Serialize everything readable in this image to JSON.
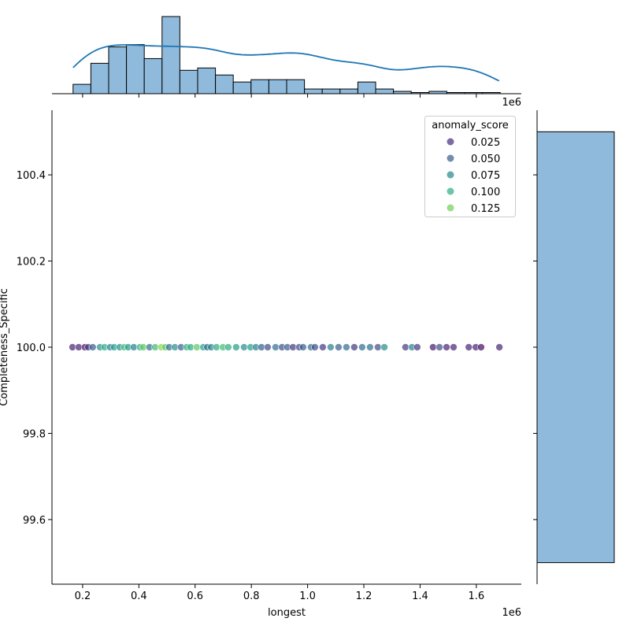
{
  "chart_data": {
    "type": "scatter",
    "kind": "jointplot",
    "xlabel": "longest",
    "ylabel": "Completeness_Specific",
    "x_offset_label": "1e6",
    "top_offset_label": "1e6",
    "xlim": [
      0.091,
      1.76
    ],
    "ylim": [
      99.45,
      100.55
    ],
    "xticks": [
      0.2,
      0.4,
      0.6,
      0.8,
      1.0,
      1.2,
      1.4,
      1.6
    ],
    "xtick_labels": [
      "0.2",
      "0.4",
      "0.6",
      "0.8",
      "1.0",
      "1.2",
      "1.4",
      "1.6"
    ],
    "yticks": [
      99.6,
      99.8,
      100.0,
      100.2,
      100.4
    ],
    "ytick_labels": [
      "99.6",
      "99.8",
      "100.0",
      "100.2",
      "100.4"
    ],
    "grid": false,
    "legend": {
      "title": "anomaly_score",
      "placement": "top-right",
      "entries": [
        {
          "label": "0.025",
          "value": 0.025
        },
        {
          "label": "0.050",
          "value": 0.05
        },
        {
          "label": "0.075",
          "value": 0.075
        },
        {
          "label": "0.100",
          "value": 0.1
        },
        {
          "label": "0.125",
          "value": 0.125
        }
      ]
    },
    "hue_range": [
      0.005,
      0.14
    ],
    "palette": "viridis",
    "hist_color": "#8fbadb",
    "kde_color": "#1f77b4",
    "points": [
      [
        0.164,
        0.02
      ],
      [
        0.186,
        0.02
      ],
      [
        0.208,
        0.01
      ],
      [
        0.22,
        0.03
      ],
      [
        0.236,
        0.05
      ],
      [
        0.262,
        0.08
      ],
      [
        0.278,
        0.1
      ],
      [
        0.298,
        0.07
      ],
      [
        0.312,
        0.09
      ],
      [
        0.332,
        0.08
      ],
      [
        0.348,
        0.11
      ],
      [
        0.362,
        0.09
      ],
      [
        0.382,
        0.07
      ],
      [
        0.404,
        0.1
      ],
      [
        0.416,
        0.12
      ],
      [
        0.438,
        0.06
      ],
      [
        0.458,
        0.11
      ],
      [
        0.48,
        0.13
      ],
      [
        0.494,
        0.12
      ],
      [
        0.508,
        0.06
      ],
      [
        0.528,
        0.08
      ],
      [
        0.55,
        0.05
      ],
      [
        0.57,
        0.1
      ],
      [
        0.584,
        0.1
      ],
      [
        0.606,
        0.12
      ],
      [
        0.629,
        0.09
      ],
      [
        0.643,
        0.06
      ],
      [
        0.657,
        0.07
      ],
      [
        0.676,
        0.1
      ],
      [
        0.699,
        0.11
      ],
      [
        0.718,
        0.1
      ],
      [
        0.746,
        0.09
      ],
      [
        0.774,
        0.08
      ],
      [
        0.797,
        0.09
      ],
      [
        0.816,
        0.07
      ],
      [
        0.836,
        0.05
      ],
      [
        0.858,
        0.04
      ],
      [
        0.886,
        0.06
      ],
      [
        0.909,
        0.04
      ],
      [
        0.928,
        0.05
      ],
      [
        0.948,
        0.03
      ],
      [
        0.97,
        0.04
      ],
      [
        0.984,
        0.05
      ],
      [
        1.012,
        0.06
      ],
      [
        1.026,
        0.04
      ],
      [
        1.054,
        0.03
      ],
      [
        1.082,
        0.07
      ],
      [
        1.11,
        0.05
      ],
      [
        1.138,
        0.06
      ],
      [
        1.166,
        0.03
      ],
      [
        1.194,
        0.06
      ],
      [
        1.222,
        0.06
      ],
      [
        1.25,
        0.04
      ],
      [
        1.273,
        0.08
      ],
      [
        1.348,
        0.03
      ],
      [
        1.371,
        0.07
      ],
      [
        1.39,
        0.03
      ],
      [
        1.446,
        0.015
      ],
      [
        1.469,
        0.04
      ],
      [
        1.494,
        0.02
      ],
      [
        1.519,
        0.02
      ],
      [
        1.573,
        0.02
      ],
      [
        1.598,
        0.02
      ],
      [
        1.617,
        0.01
      ],
      [
        1.682,
        0.02
      ]
    ],
    "y_value": 100.0,
    "top_hist": {
      "bin_start": 0.166,
      "bin_end": 1.685,
      "counts": [
        4,
        13,
        20,
        21,
        15,
        33,
        10,
        11,
        8,
        5,
        6,
        6,
        6,
        2,
        2,
        2,
        5,
        2,
        1,
        0.5,
        1,
        0.5,
        0.5,
        0.5
      ]
    },
    "right_hist": {
      "bins": [
        [
          99.5,
          100.5
        ]
      ],
      "counts": [
        65
      ]
    }
  }
}
